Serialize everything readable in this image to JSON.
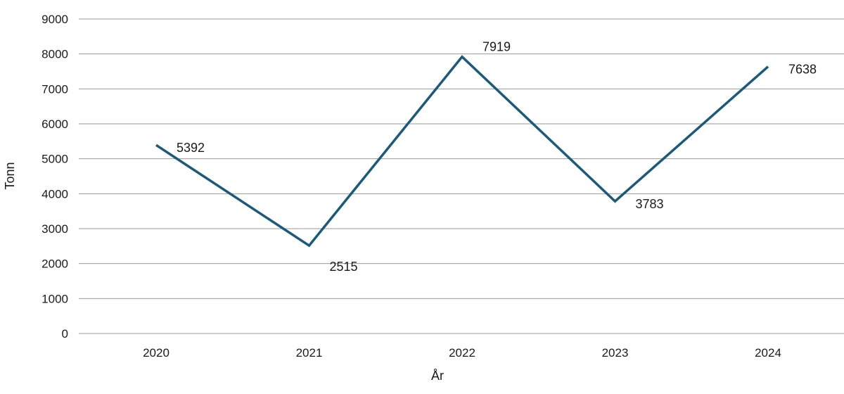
{
  "chart_data": {
    "type": "line",
    "categories": [
      "2020",
      "2021",
      "2022",
      "2023",
      "2024"
    ],
    "series": [
      {
        "values": [
          5392,
          2515,
          7919,
          3783,
          7638
        ],
        "color": "#1b5a7a"
      }
    ],
    "data_labels": [
      "5392",
      "2515",
      "7919",
      "3783",
      "7638"
    ],
    "yticks": [
      0,
      1000,
      2000,
      3000,
      4000,
      5000,
      6000,
      7000,
      8000,
      9000
    ],
    "ylim": [
      0,
      9000
    ],
    "xlabel": "År",
    "ylabel": "Tonn",
    "grid": "horizontal",
    "gridColor": "#9a9a9a"
  }
}
